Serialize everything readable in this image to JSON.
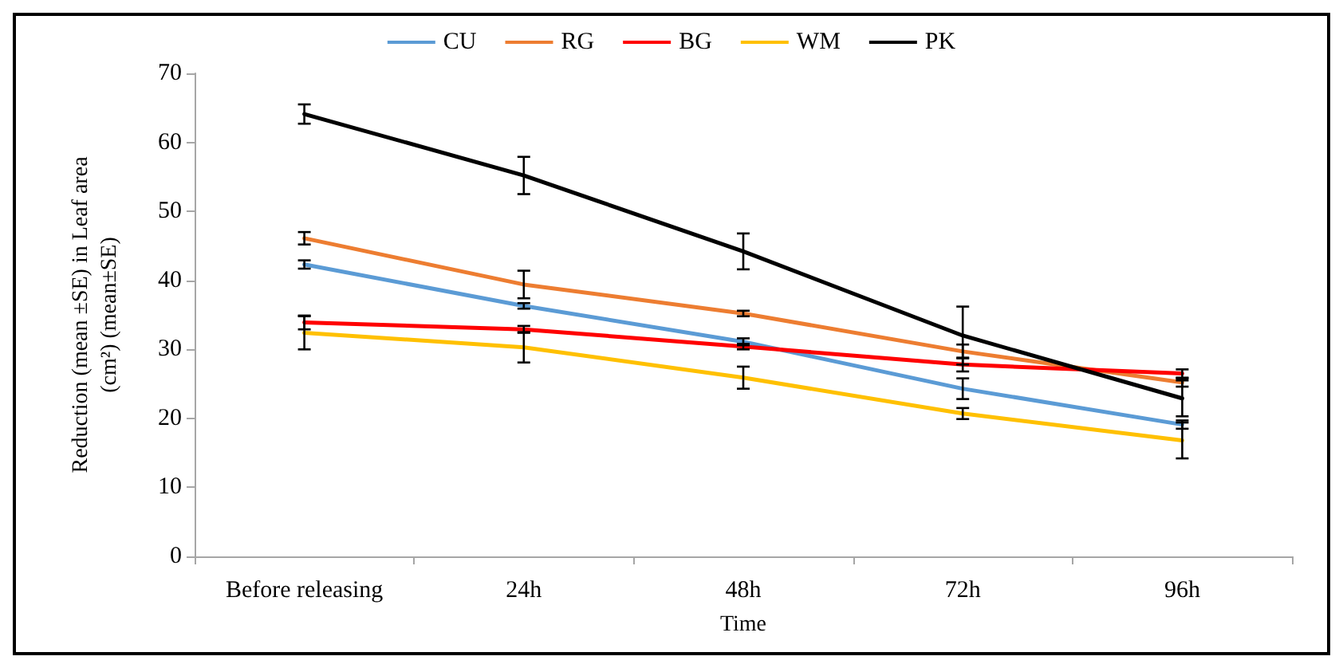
{
  "chart_data": {
    "type": "line",
    "xlabel": "Time",
    "ylabel": "Reduction (mean ±SE) in Leaf area\n(cm²) (mean±SE)",
    "categories": [
      "Before releasing",
      "24h",
      "48h",
      "72h",
      "96h"
    ],
    "ylim": [
      0,
      70
    ],
    "yticks": [
      0,
      10,
      20,
      30,
      40,
      50,
      60,
      70
    ],
    "grid": false,
    "legend": "top",
    "marker": "none",
    "line_style": "solid",
    "series": [
      {
        "name": "CU",
        "color": "#5b9bd5",
        "values": [
          42.3,
          36.3,
          31.1,
          24.3,
          19.1
        ],
        "errors": [
          0.6,
          0.4,
          0.5,
          1.5,
          0.6
        ]
      },
      {
        "name": "RG",
        "color": "#ed7d31",
        "values": [
          46.1,
          39.4,
          35.2,
          29.7,
          25.2
        ],
        "errors": [
          0.9,
          2,
          0.4,
          1,
          0.6
        ]
      },
      {
        "name": "BG",
        "color": "#ff0000",
        "values": [
          33.9,
          32.9,
          30.4,
          27.8,
          26.5
        ],
        "errors": [
          1,
          0.5,
          0.4,
          1,
          0.6
        ]
      },
      {
        "name": "WM",
        "color": "#ffc000",
        "values": [
          32.4,
          30.3,
          25.9,
          20.7,
          16.8
        ],
        "errors": [
          2.4,
          2.2,
          1.6,
          0.8,
          2.6
        ]
      },
      {
        "name": "PK",
        "color": "#000000",
        "values": [
          64.1,
          55.2,
          44.2,
          32,
          22.9
        ],
        "errors": [
          1.4,
          2.7,
          2.6,
          4.2,
          2.6
        ]
      }
    ]
  }
}
